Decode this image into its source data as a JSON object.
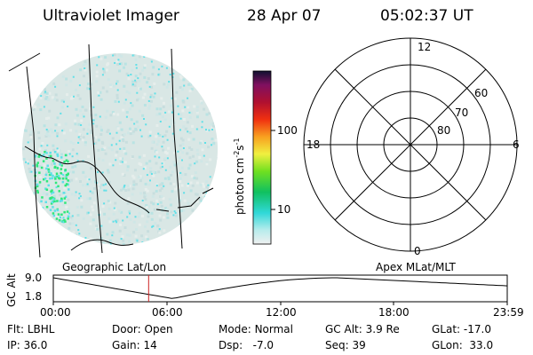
{
  "header": {
    "title": "Ultraviolet Imager",
    "date": "28 Apr 07",
    "time": "05:02:37 UT"
  },
  "colorbar": {
    "unit_label": "photon cm",
    "unit_sup1": "-2",
    "unit_s": "s",
    "unit_sup2": "-1",
    "ticks": [
      "100",
      "10"
    ]
  },
  "left_panel": {
    "caption": "Geographic Lat/Lon"
  },
  "polar_plot": {
    "caption": "Apex MLat/MLT",
    "mlt_labels": {
      "top": "12",
      "bottom": "0",
      "left": "18",
      "right": "6"
    },
    "lat_labels": [
      "60",
      "70",
      "80"
    ]
  },
  "altitude_plot": {
    "ylabel": "GC Alt",
    "yticks": [
      "9.0",
      "1.8"
    ],
    "xticks": [
      "00:00",
      "06:00",
      "12:00",
      "18:00",
      "23:59"
    ],
    "current_time_hours": 5.04
  },
  "info": {
    "flt": {
      "label": "Flt:",
      "value": "LBHL"
    },
    "ip": {
      "label": "IP:",
      "value": "36.0"
    },
    "door": {
      "label": "Door:",
      "value": "Open"
    },
    "gain": {
      "label": "Gain:",
      "value": "14"
    },
    "mode": {
      "label": "Mode:",
      "value": "Normal"
    },
    "dsp": {
      "label": "Dsp:",
      "value": "-7.0"
    },
    "gcalt": {
      "label": "GC Alt:",
      "value": "3.9 Re"
    },
    "seq": {
      "label": "Seq:",
      "value": "39"
    },
    "glat": {
      "label": "GLat:",
      "value": "-17.0"
    },
    "glon": {
      "label": "GLon:",
      "value": "33.0"
    }
  },
  "colors": {
    "image_base": "#d6e6e4",
    "speckle_cyan": "#5fe0e8",
    "speckle_green": "#2ee87a",
    "marker_line": "#cc2222"
  }
}
